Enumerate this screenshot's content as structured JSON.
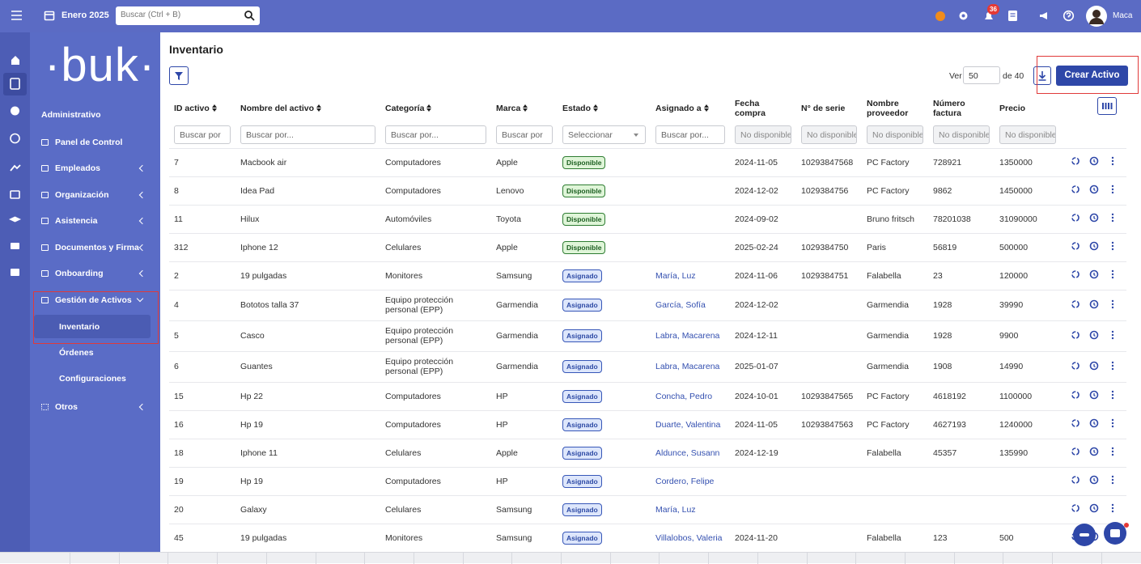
{
  "topbar": {
    "date": "Enero 2025",
    "search_placeholder": "Buscar (Ctrl + B)",
    "notifications": "36",
    "user": "Maca"
  },
  "sidebar": {
    "logo": "·buk·",
    "section": "Administrativo",
    "items": [
      "Panel de Control",
      "Empleados",
      "Organización",
      "Asistencia",
      "Documentos y Firma",
      "Onboarding",
      "Gestión de Activos"
    ],
    "submenu": [
      "Inventario",
      "Órdenes",
      "Configuraciones"
    ],
    "other": "Otros"
  },
  "page": {
    "title": "Inventario",
    "per_page_label": "Ver",
    "per_page": "50",
    "total": "de 40",
    "create_button": "Crear Activo"
  },
  "table": {
    "headers": [
      "ID activo",
      "Nombre del activo",
      "Categoría",
      "Marca",
      "Estado",
      "Asignado a",
      "Fecha compra",
      "N° de serie",
      "Nombre proveedor",
      "Número factura",
      "Precio"
    ],
    "filters": [
      "Buscar por",
      "Buscar por...",
      "Buscar por...",
      "Buscar por",
      "Seleccionar",
      "Buscar por...",
      "No disponible",
      "No disponible",
      "No disponible",
      "No disponible",
      "No disponible"
    ],
    "rows": [
      [
        "7",
        "Macbook air",
        "Computadores",
        "Apple",
        "Disponible",
        null,
        "2024-11-05",
        "10293847568",
        "PC Factory",
        "728921",
        "1350000"
      ],
      [
        "8",
        "Idea Pad",
        "Computadores",
        "Lenovo",
        "Disponible",
        null,
        "2024-12-02",
        "1029384756",
        "PC Factory",
        "9862",
        "1450000"
      ],
      [
        "11",
        "Hilux",
        "Automóviles",
        "Toyota",
        "Disponible",
        null,
        "2024-09-02",
        null,
        "Bruno fritsch",
        "78201038",
        "31090000"
      ],
      [
        "312",
        "Iphone 12",
        "Celulares",
        "Apple",
        "Disponible",
        null,
        "2025-02-24",
        "1029384750",
        "Paris",
        "56819",
        "500000"
      ],
      [
        "2",
        "19 pulgadas",
        "Monitores",
        "Samsung",
        "Asignado",
        "María, Luz",
        "2024-11-06",
        "1029384751",
        "Falabella",
        "23",
        "120000"
      ],
      [
        "4",
        "Bototos talla 37",
        "Equipo protección personal (EPP)",
        "Garmendia",
        "Asignado",
        "García, Sofía",
        "2024-12-02",
        null,
        "Garmendia",
        "1928",
        "39990"
      ],
      [
        "5",
        "Casco",
        "Equipo protección personal (EPP)",
        "Garmendia",
        "Asignado",
        "Labra, Macarena",
        "2024-12-11",
        null,
        "Garmendia",
        "1928",
        "9900"
      ],
      [
        "6",
        "Guantes",
        "Equipo protección personal (EPP)",
        "Garmendia",
        "Asignado",
        "Labra, Macarena",
        "2025-01-07",
        null,
        "Garmendia",
        "1908",
        "14990"
      ],
      [
        "15",
        "Hp 22",
        "Computadores",
        "HP",
        "Asignado",
        "Concha, Pedro",
        "2024-10-01",
        "10293847565",
        "PC Factory",
        "4618192",
        "1100000"
      ],
      [
        "16",
        "Hp 19",
        "Computadores",
        "HP",
        "Asignado",
        "Duarte, Valentina",
        "2024-11-05",
        "10293847563",
        "PC Factory",
        "4627193",
        "1240000"
      ],
      [
        "18",
        "Iphone 11",
        "Celulares",
        "Apple",
        "Asignado",
        "Aldunce, Susann",
        "2024-12-19",
        null,
        "Falabella",
        "45357",
        "135990"
      ],
      [
        "19",
        "Hp 19",
        "Computadores",
        "HP",
        "Asignado",
        "Cordero, Felipe",
        null,
        null,
        null,
        null,
        null
      ],
      [
        "20",
        "Galaxy",
        "Celulares",
        "Samsung",
        "Asignado",
        "María, Luz",
        null,
        null,
        null,
        null,
        null
      ],
      [
        "45",
        "19 pulgadas",
        "Monitores",
        "Samsung",
        "Asignado",
        "Villalobos, Valeria",
        "2024-11-20",
        null,
        "Falabella",
        "123",
        "500"
      ]
    ]
  }
}
